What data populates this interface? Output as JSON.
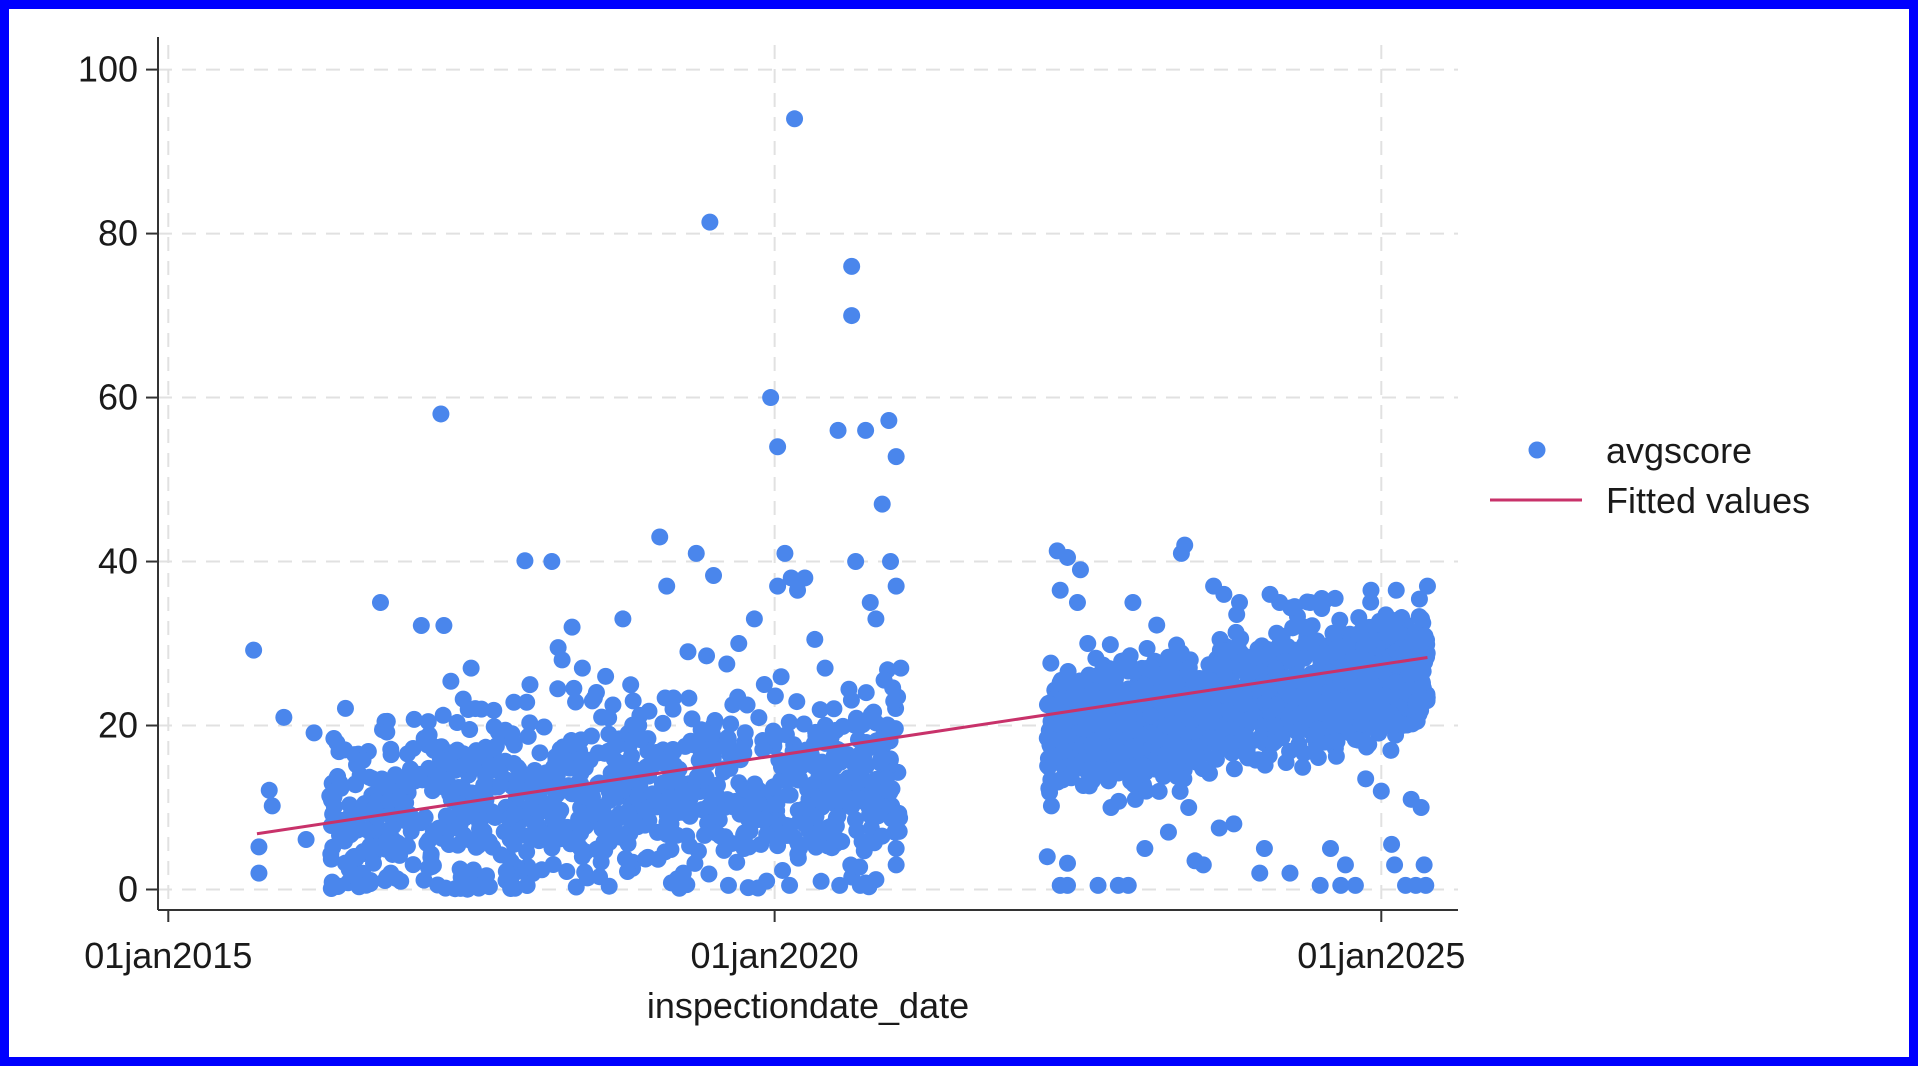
{
  "chart_data": {
    "type": "scatter",
    "title": "",
    "xlabel": "inspectiondate_date",
    "ylabel": "",
    "x_type": "date",
    "xlim": [
      "2014-12-01",
      "2025-08-20"
    ],
    "ylim": [
      -2.5,
      103
    ],
    "x_ticks": [
      {
        "date": "2015-01-01",
        "label": "01jan2015"
      },
      {
        "date": "2020-01-01",
        "label": "01jan2020"
      },
      {
        "date": "2025-01-01",
        "label": "01jan2025"
      }
    ],
    "y_ticks": [
      0,
      20,
      40,
      60,
      80,
      100
    ],
    "grid": true,
    "legend_placement": "right",
    "colors": {
      "points": "#4a86ec",
      "fit": "#c8326a",
      "frame": "#0000ff",
      "grid": "#e1e1e1"
    },
    "series": [
      {
        "name": "avgscore",
        "kind": "scatter",
        "points": [
          [
            "2015-09-15",
            29.2
          ],
          [
            "2015-10-01",
            5.2
          ],
          [
            "2015-10-01",
            2.0
          ],
          [
            "2015-11-01",
            12.1
          ],
          [
            "2015-11-10",
            10.2
          ],
          [
            "2015-12-15",
            21.0
          ],
          [
            "2016-02-20",
            6.1
          ],
          [
            "2016-03-15",
            19.1
          ],
          [
            "2016-05-10",
            9.2
          ],
          [
            "2016-06-01",
            13.0
          ],
          [
            "2016-07-01",
            7.2
          ],
          [
            "2016-09-01",
            1.1
          ],
          [
            "2016-09-10",
            3.2
          ],
          [
            "2016-10-01",
            35.0
          ],
          [
            "2016-10-20",
            19.2
          ],
          [
            "2016-11-01",
            17.1
          ],
          [
            "2016-11-15",
            14.0
          ],
          [
            "2016-12-01",
            1.0
          ],
          [
            "2017-02-01",
            32.2
          ],
          [
            "2017-04-10",
            32.2
          ],
          [
            "2017-04-01",
            58.0
          ],
          [
            "2017-05-01",
            25.4
          ],
          [
            "2017-05-20",
            17.0
          ],
          [
            "2017-06-10",
            0.5
          ],
          [
            "2017-07-01",
            27.0
          ],
          [
            "2017-08-01",
            22.0
          ],
          [
            "2017-09-15",
            17.5
          ],
          [
            "2017-11-01",
            19.0
          ],
          [
            "2017-12-10",
            40.1
          ],
          [
            "2018-01-15",
            8.0
          ],
          [
            "2018-03-01",
            40.0
          ],
          [
            "2018-03-20",
            29.5
          ],
          [
            "2018-04-01",
            28.0
          ],
          [
            "2018-05-01",
            32.0
          ],
          [
            "2018-06-01",
            27.0
          ],
          [
            "2018-07-01",
            23.0
          ],
          [
            "2018-08-10",
            26.0
          ],
          [
            "2018-09-01",
            22.5
          ],
          [
            "2018-10-01",
            33.0
          ],
          [
            "2018-11-01",
            23.0
          ],
          [
            "2019-01-20",
            43.0
          ],
          [
            "2019-02-10",
            37.0
          ],
          [
            "2019-03-01",
            22.0
          ],
          [
            "2019-04-15",
            29.0
          ],
          [
            "2019-05-10",
            41.0
          ],
          [
            "2019-06-10",
            28.5
          ],
          [
            "2019-07-01",
            38.3
          ],
          [
            "2019-08-10",
            27.5
          ],
          [
            "2019-09-15",
            30.0
          ],
          [
            "2019-10-10",
            22.5
          ],
          [
            "2019-11-01",
            33.0
          ],
          [
            "2019-12-01",
            25.0
          ],
          [
            "2020-01-10",
            37.0
          ],
          [
            "2020-02-01",
            41.0
          ],
          [
            "2020-02-20",
            38.0
          ],
          [
            "2020-03-10",
            36.5
          ],
          [
            "2020-04-01",
            38.0
          ],
          [
            "2020-05-01",
            30.5
          ],
          [
            "2020-06-01",
            27.0
          ],
          [
            "2019-06-20",
            81.4
          ],
          [
            "2020-03-01",
            94.0
          ],
          [
            "2019-12-20",
            60.0
          ],
          [
            "2020-01-10",
            54.0
          ],
          [
            "2020-07-10",
            56.0
          ],
          [
            "2020-08-20",
            76.0
          ],
          [
            "2020-08-20",
            70.0
          ],
          [
            "2020-10-01",
            56.0
          ],
          [
            "2020-12-10",
            57.2
          ],
          [
            "2021-01-01",
            52.8
          ],
          [
            "2020-11-20",
            47.0
          ],
          [
            "2020-09-01",
            40.0
          ],
          [
            "2020-12-15",
            40.0
          ],
          [
            "2021-01-01",
            37.0
          ],
          [
            "2020-10-15",
            35.0
          ],
          [
            "2020-11-01",
            33.0
          ],
          [
            "2021-01-15",
            27.0
          ],
          [
            "2020-09-15",
            0.5
          ],
          [
            "2020-10-01",
            0.8
          ],
          [
            "2020-11-01",
            1.2
          ],
          [
            "2021-01-01",
            3.0
          ],
          [
            "2021-01-01",
            5.0
          ],
          [
            "2019-04-01",
            2.0
          ],
          [
            "2019-08-15",
            0.5
          ],
          [
            "2020-02-15",
            0.5
          ],
          [
            "2020-05-20",
            1.0
          ],
          [
            "2020-07-15",
            0.5
          ],
          [
            "2017-10-15",
            2.2
          ],
          [
            "2018-04-15",
            2.2
          ],
          [
            "2018-10-15",
            2.2
          ],
          [
            "2016-09-01",
            5.0
          ],
          [
            "2016-11-01",
            2.0
          ],
          [
            "2017-06-01",
            1.5
          ],
          [
            "2018-06-01",
            4.0
          ],
          [
            "2019-10-01",
            5.0
          ],
          [
            "2020-04-01",
            8.0
          ],
          [
            "2022-05-01",
            41.3
          ],
          [
            "2022-06-01",
            40.5
          ],
          [
            "2022-07-10",
            39.0
          ],
          [
            "2022-05-10",
            36.5
          ],
          [
            "2022-07-01",
            35.0
          ],
          [
            "2022-08-01",
            30.0
          ],
          [
            "2022-04-01",
            4.0
          ],
          [
            "2022-05-10",
            0.5
          ],
          [
            "2022-06-01",
            0.5
          ],
          [
            "2022-06-01",
            3.2
          ],
          [
            "2022-09-01",
            0.5
          ],
          [
            "2022-11-01",
            0.5
          ],
          [
            "2022-12-01",
            0.5
          ],
          [
            "2022-10-10",
            10.0
          ],
          [
            "2023-01-20",
            5.0
          ],
          [
            "2022-12-15",
            35.0
          ],
          [
            "2023-04-01",
            7.0
          ],
          [
            "2023-06-01",
            10.0
          ],
          [
            "2023-05-10",
            41.0
          ],
          [
            "2023-05-20",
            42.0
          ],
          [
            "2023-08-15",
            37.0
          ],
          [
            "2023-09-15",
            36.0
          ],
          [
            "2023-11-01",
            35.0
          ],
          [
            "2023-06-20",
            3.5
          ],
          [
            "2023-07-15",
            3.0
          ],
          [
            "2023-09-01",
            7.5
          ],
          [
            "2023-10-15",
            8.0
          ],
          [
            "2024-01-15",
            5.0
          ],
          [
            "2024-01-01",
            2.0
          ],
          [
            "2024-04-01",
            2.0
          ],
          [
            "2024-07-01",
            0.5
          ],
          [
            "2024-08-01",
            5.0
          ],
          [
            "2024-09-01",
            0.5
          ],
          [
            "2024-09-15",
            3.0
          ],
          [
            "2024-10-15",
            0.5
          ],
          [
            "2024-11-15",
            13.5
          ],
          [
            "2025-01-01",
            12.0
          ],
          [
            "2025-02-01",
            5.5
          ],
          [
            "2025-02-10",
            3.0
          ],
          [
            "2025-03-15",
            0.5
          ],
          [
            "2025-04-01",
            11.0
          ],
          [
            "2025-04-15",
            0.5
          ],
          [
            "2025-05-01",
            10.0
          ],
          [
            "2025-05-10",
            3.0
          ],
          [
            "2025-05-15",
            0.5
          ],
          [
            "2025-01-15",
            33.5
          ],
          [
            "2025-02-15",
            36.5
          ],
          [
            "2025-05-20",
            37.0
          ],
          [
            "2024-12-01",
            36.5
          ],
          [
            "2024-06-01",
            35.0
          ],
          [
            "2024-08-15",
            35.5
          ],
          [
            "2024-03-01",
            35.0
          ],
          [
            "2024-02-01",
            36.0
          ],
          [
            "2024-04-15",
            34.5
          ]
        ]
      },
      {
        "name": "Fitted values",
        "kind": "line",
        "points": [
          [
            "2015-09-25",
            6.8
          ],
          [
            "2025-05-20",
            28.3
          ]
        ]
      }
    ],
    "dense_bands": [
      {
        "from": "2016-05-01",
        "to": "2021-01-15",
        "y_center_start": 8.5,
        "y_center_end": 14.5,
        "spread": 5.5
      },
      {
        "from": "2022-04-01",
        "to": "2025-05-20",
        "y_center_start": 19.0,
        "y_center_end": 27.0,
        "spread": 3.8
      }
    ]
  }
}
